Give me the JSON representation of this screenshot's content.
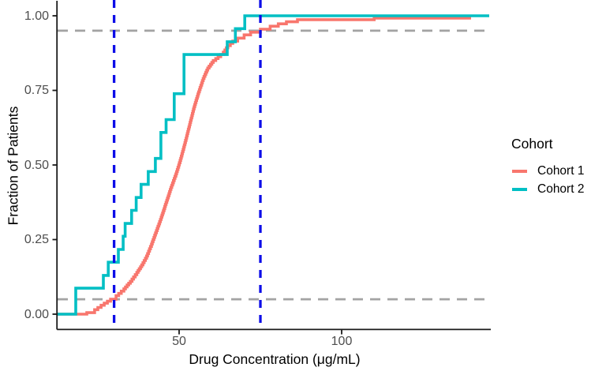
{
  "chart": {
    "background": "#ffffff",
    "axis_color": "#1a1a1a",
    "tick_label_color": "#4d4d4d",
    "title_color": "#000000"
  },
  "axes": {
    "x": {
      "title": "Drug Concentration (μg/mL)",
      "ticks": [
        {
          "value": 50,
          "label": "50"
        },
        {
          "value": 100,
          "label": "100"
        }
      ]
    },
    "y": {
      "title": "Fraction of Patients",
      "ticks": [
        {
          "value": 0,
          "label": "0.00"
        },
        {
          "value": 0.25,
          "label": "0.25"
        },
        {
          "value": 0.5,
          "label": "0.50"
        },
        {
          "value": 0.75,
          "label": "0.75"
        },
        {
          "value": 1,
          "label": "1.00"
        }
      ]
    }
  },
  "legend": {
    "title": "Cohort",
    "entries": [
      {
        "label": "Cohort 1",
        "color": "#F8766D"
      },
      {
        "label": "Cohort 2",
        "color": "#00BFC4"
      }
    ]
  },
  "chart_data": {
    "type": "line",
    "variant": "ecdf_step",
    "title": "",
    "xlabel": "Drug Concentration (μg/mL)",
    "ylabel": "Fraction of Patients",
    "xlim": [
      12.6,
      146
    ],
    "ylim": [
      0,
      1
    ],
    "grid": false,
    "legend_position": "right",
    "series": [
      {
        "name": "Cohort 1",
        "color": "#F8766D",
        "step_detail": "fine",
        "points": [
          [
            12.6,
            0
          ],
          [
            21.6,
            0.005
          ],
          [
            24,
            0.015
          ],
          [
            26,
            0.03
          ],
          [
            28.9,
            0.05
          ],
          [
            30.6,
            0.062
          ],
          [
            33,
            0.085
          ],
          [
            35,
            0.11
          ],
          [
            37,
            0.14
          ],
          [
            38.5,
            0.165
          ],
          [
            40,
            0.195
          ],
          [
            41.5,
            0.235
          ],
          [
            43,
            0.28
          ],
          [
            44.5,
            0.325
          ],
          [
            46,
            0.375
          ],
          [
            47.5,
            0.425
          ],
          [
            49,
            0.47
          ],
          [
            50.3,
            0.515
          ],
          [
            51.8,
            0.575
          ],
          [
            53.2,
            0.635
          ],
          [
            54.6,
            0.695
          ],
          [
            56,
            0.745
          ],
          [
            57.4,
            0.79
          ],
          [
            58.8,
            0.825
          ],
          [
            60.5,
            0.85
          ],
          [
            62,
            0.863
          ],
          [
            63.6,
            0.878
          ],
          [
            65,
            0.9
          ],
          [
            66.5,
            0.915
          ],
          [
            68,
            0.925
          ],
          [
            70,
            0.936
          ],
          [
            72,
            0.945
          ],
          [
            75,
            0.955
          ],
          [
            78,
            0.965
          ],
          [
            80.5,
            0.973
          ],
          [
            83,
            0.98
          ],
          [
            86.4,
            0.987
          ],
          [
            110,
            0.992
          ],
          [
            139.8,
            0.992
          ]
        ]
      },
      {
        "name": "Cohort 2",
        "color": "#00BFC4",
        "step_detail": "coarse",
        "points": [
          [
            12.6,
            0
          ],
          [
            18.2,
            0.087
          ],
          [
            26.7,
            0.13
          ],
          [
            28.2,
            0.174
          ],
          [
            31.3,
            0.217
          ],
          [
            32.8,
            0.261
          ],
          [
            33.4,
            0.304
          ],
          [
            35.4,
            0.348
          ],
          [
            36.8,
            0.391
          ],
          [
            38.3,
            0.435
          ],
          [
            40.5,
            0.478
          ],
          [
            42.7,
            0.522
          ],
          [
            44.4,
            0.609
          ],
          [
            46,
            0.652
          ],
          [
            48.5,
            0.739
          ],
          [
            51.5,
            0.87
          ],
          [
            64.8,
            0.913
          ],
          [
            67.3,
            0.957
          ],
          [
            70.2,
            1
          ],
          [
            145.4,
            1
          ]
        ]
      }
    ],
    "reference_lines": {
      "vertical": [
        {
          "x": 30,
          "color": "#0d0de8",
          "style": "dashed"
        },
        {
          "x": 75,
          "color": "#0d0de8",
          "style": "dashed"
        }
      ],
      "horizontal": [
        {
          "y": 0.05,
          "color": "#a3a3a3",
          "style": "dashed"
        },
        {
          "y": 0.95,
          "color": "#a3a3a3",
          "style": "dashed"
        }
      ]
    }
  }
}
